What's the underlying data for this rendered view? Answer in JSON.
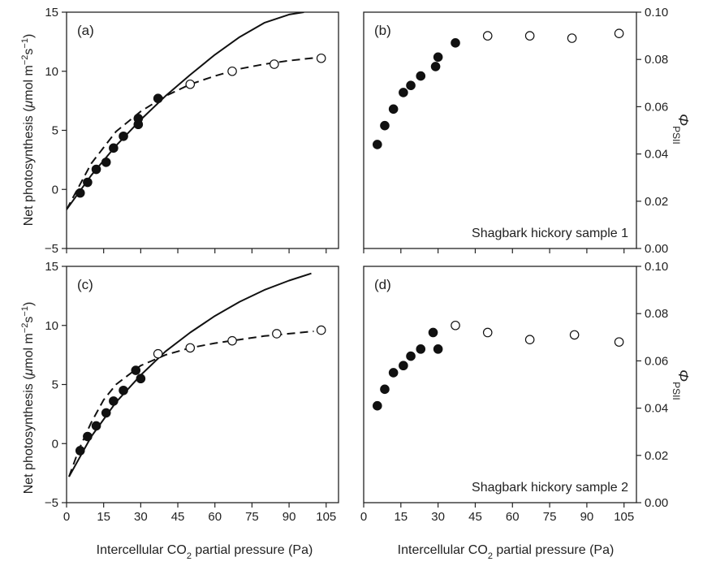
{
  "figure": {
    "ylabel_left": "Net photosynthesis (μmol m⁻²s⁻¹)",
    "ylabel_right": "ΦPSII",
    "xlabel": "Intercellular CO₂ partial pressure (Pa)"
  },
  "chart_data": [
    {
      "panel_label": "(a)",
      "type": "scatter",
      "xlabel": "Intercellular CO₂ partial pressure (Pa)",
      "ylabel": "Net photosynthesis (μmol m⁻²s⁻¹)",
      "xlim": [
        0,
        110
      ],
      "ylim": [
        -5,
        15
      ],
      "xticks": [
        0,
        15,
        30,
        45,
        60,
        75,
        90,
        105
      ],
      "yticks": [
        -5,
        0,
        5,
        10,
        15
      ],
      "series": [
        {
          "name": "",
          "marker": "filled",
          "x": [
            5.5,
            8.5,
            12,
            16,
            19,
            23,
            29,
            29,
            37
          ],
          "y": [
            -0.3,
            0.6,
            1.7,
            2.3,
            3.5,
            4.5,
            5.5,
            6.0,
            7.7
          ]
        },
        {
          "name": "",
          "marker": "open",
          "x": [
            50,
            67,
            84,
            103
          ],
          "y": [
            8.9,
            10.0,
            10.6,
            11.1
          ]
        },
        {
          "name": "",
          "style": "solid",
          "x": [
            0,
            10,
            20,
            30,
            40,
            50,
            60,
            70,
            80,
            90,
            96
          ],
          "y": [
            -1.7,
            1.2,
            3.7,
            5.9,
            7.9,
            9.7,
            11.4,
            12.9,
            14.1,
            14.8,
            15.0
          ]
        },
        {
          "name": "",
          "style": "dashed",
          "x": [
            0,
            10,
            20,
            30,
            40,
            50,
            60,
            70,
            80,
            90,
            103
          ],
          "y": [
            -1.7,
            2.2,
            4.9,
            6.6,
            7.9,
            8.9,
            9.6,
            10.2,
            10.6,
            10.9,
            11.2
          ]
        }
      ]
    },
    {
      "panel_label": "(b)",
      "type": "scatter",
      "xlabel": "Intercellular CO₂ partial pressure (Pa)",
      "ylabel": "ΦPSII",
      "annotation": "Shagbark hickory sample 1",
      "xlim": [
        0,
        110
      ],
      "ylim": [
        0,
        0.1
      ],
      "yticks": [
        "0.00",
        "0.02",
        "0.04",
        "0.06",
        "0.08",
        "0.10"
      ],
      "series": [
        {
          "name": "",
          "marker": "filled",
          "x": [
            5.5,
            8.5,
            12,
            16,
            19,
            23,
            29,
            30,
            37
          ],
          "y": [
            0.044,
            0.052,
            0.059,
            0.066,
            0.069,
            0.073,
            0.077,
            0.081,
            0.087
          ]
        },
        {
          "name": "",
          "marker": "open",
          "x": [
            50,
            67,
            84,
            103
          ],
          "y": [
            0.09,
            0.09,
            0.089,
            0.091
          ]
        }
      ]
    },
    {
      "panel_label": "(c)",
      "type": "scatter",
      "xlabel": "Intercellular CO₂ partial pressure (Pa)",
      "ylabel": "Net photosynthesis (μmol m⁻²s⁻¹)",
      "xlim": [
        0,
        110
      ],
      "ylim": [
        -5,
        15
      ],
      "xticks": [
        0,
        15,
        30,
        45,
        60,
        75,
        90,
        105
      ],
      "yticks": [
        -5,
        0,
        5,
        10,
        15
      ],
      "series": [
        {
          "name": "",
          "marker": "filled",
          "x": [
            5.5,
            8.5,
            12,
            16,
            19,
            23,
            28,
            30
          ],
          "y": [
            -0.6,
            0.6,
            1.5,
            2.6,
            3.6,
            4.5,
            6.2,
            5.5
          ]
        },
        {
          "name": "",
          "marker": "open",
          "x": [
            37,
            50,
            67,
            85,
            103
          ],
          "y": [
            7.6,
            8.1,
            8.7,
            9.3,
            9.6
          ]
        },
        {
          "name": "",
          "style": "solid",
          "x": [
            1,
            10,
            20,
            30,
            40,
            50,
            60,
            70,
            80,
            90,
            99
          ],
          "y": [
            -2.8,
            0.6,
            3.5,
            5.8,
            7.8,
            9.4,
            10.8,
            12.0,
            13.0,
            13.8,
            14.4
          ]
        },
        {
          "name": "",
          "style": "dashed",
          "x": [
            1,
            5,
            10,
            15,
            20,
            30,
            40,
            50,
            60,
            70,
            80,
            90,
            100
          ],
          "y": [
            -2.8,
            -0.5,
            1.8,
            3.7,
            5.0,
            6.6,
            7.5,
            8.1,
            8.5,
            8.8,
            9.1,
            9.3,
            9.5
          ]
        }
      ]
    },
    {
      "panel_label": "(d)",
      "type": "scatter",
      "xlabel": "Intercellular CO₂ partial pressure (Pa)",
      "ylabel": "ΦPSII",
      "annotation": "Shagbark hickory sample 2",
      "xlim": [
        0,
        110
      ],
      "ylim": [
        0,
        0.1
      ],
      "xticks": [
        0,
        15,
        30,
        45,
        60,
        75,
        90,
        105
      ],
      "yticks": [
        "0.00",
        "0.02",
        "0.04",
        "0.06",
        "0.08",
        "0.10"
      ],
      "series": [
        {
          "name": "",
          "marker": "filled",
          "x": [
            5.5,
            8.5,
            12,
            16,
            19,
            23,
            28,
            30
          ],
          "y": [
            0.041,
            0.048,
            0.055,
            0.058,
            0.062,
            0.065,
            0.072,
            0.065
          ]
        },
        {
          "name": "",
          "marker": "open",
          "x": [
            37,
            50,
            67,
            85,
            103
          ],
          "y": [
            0.075,
            0.072,
            0.069,
            0.071,
            0.068
          ]
        }
      ]
    }
  ]
}
